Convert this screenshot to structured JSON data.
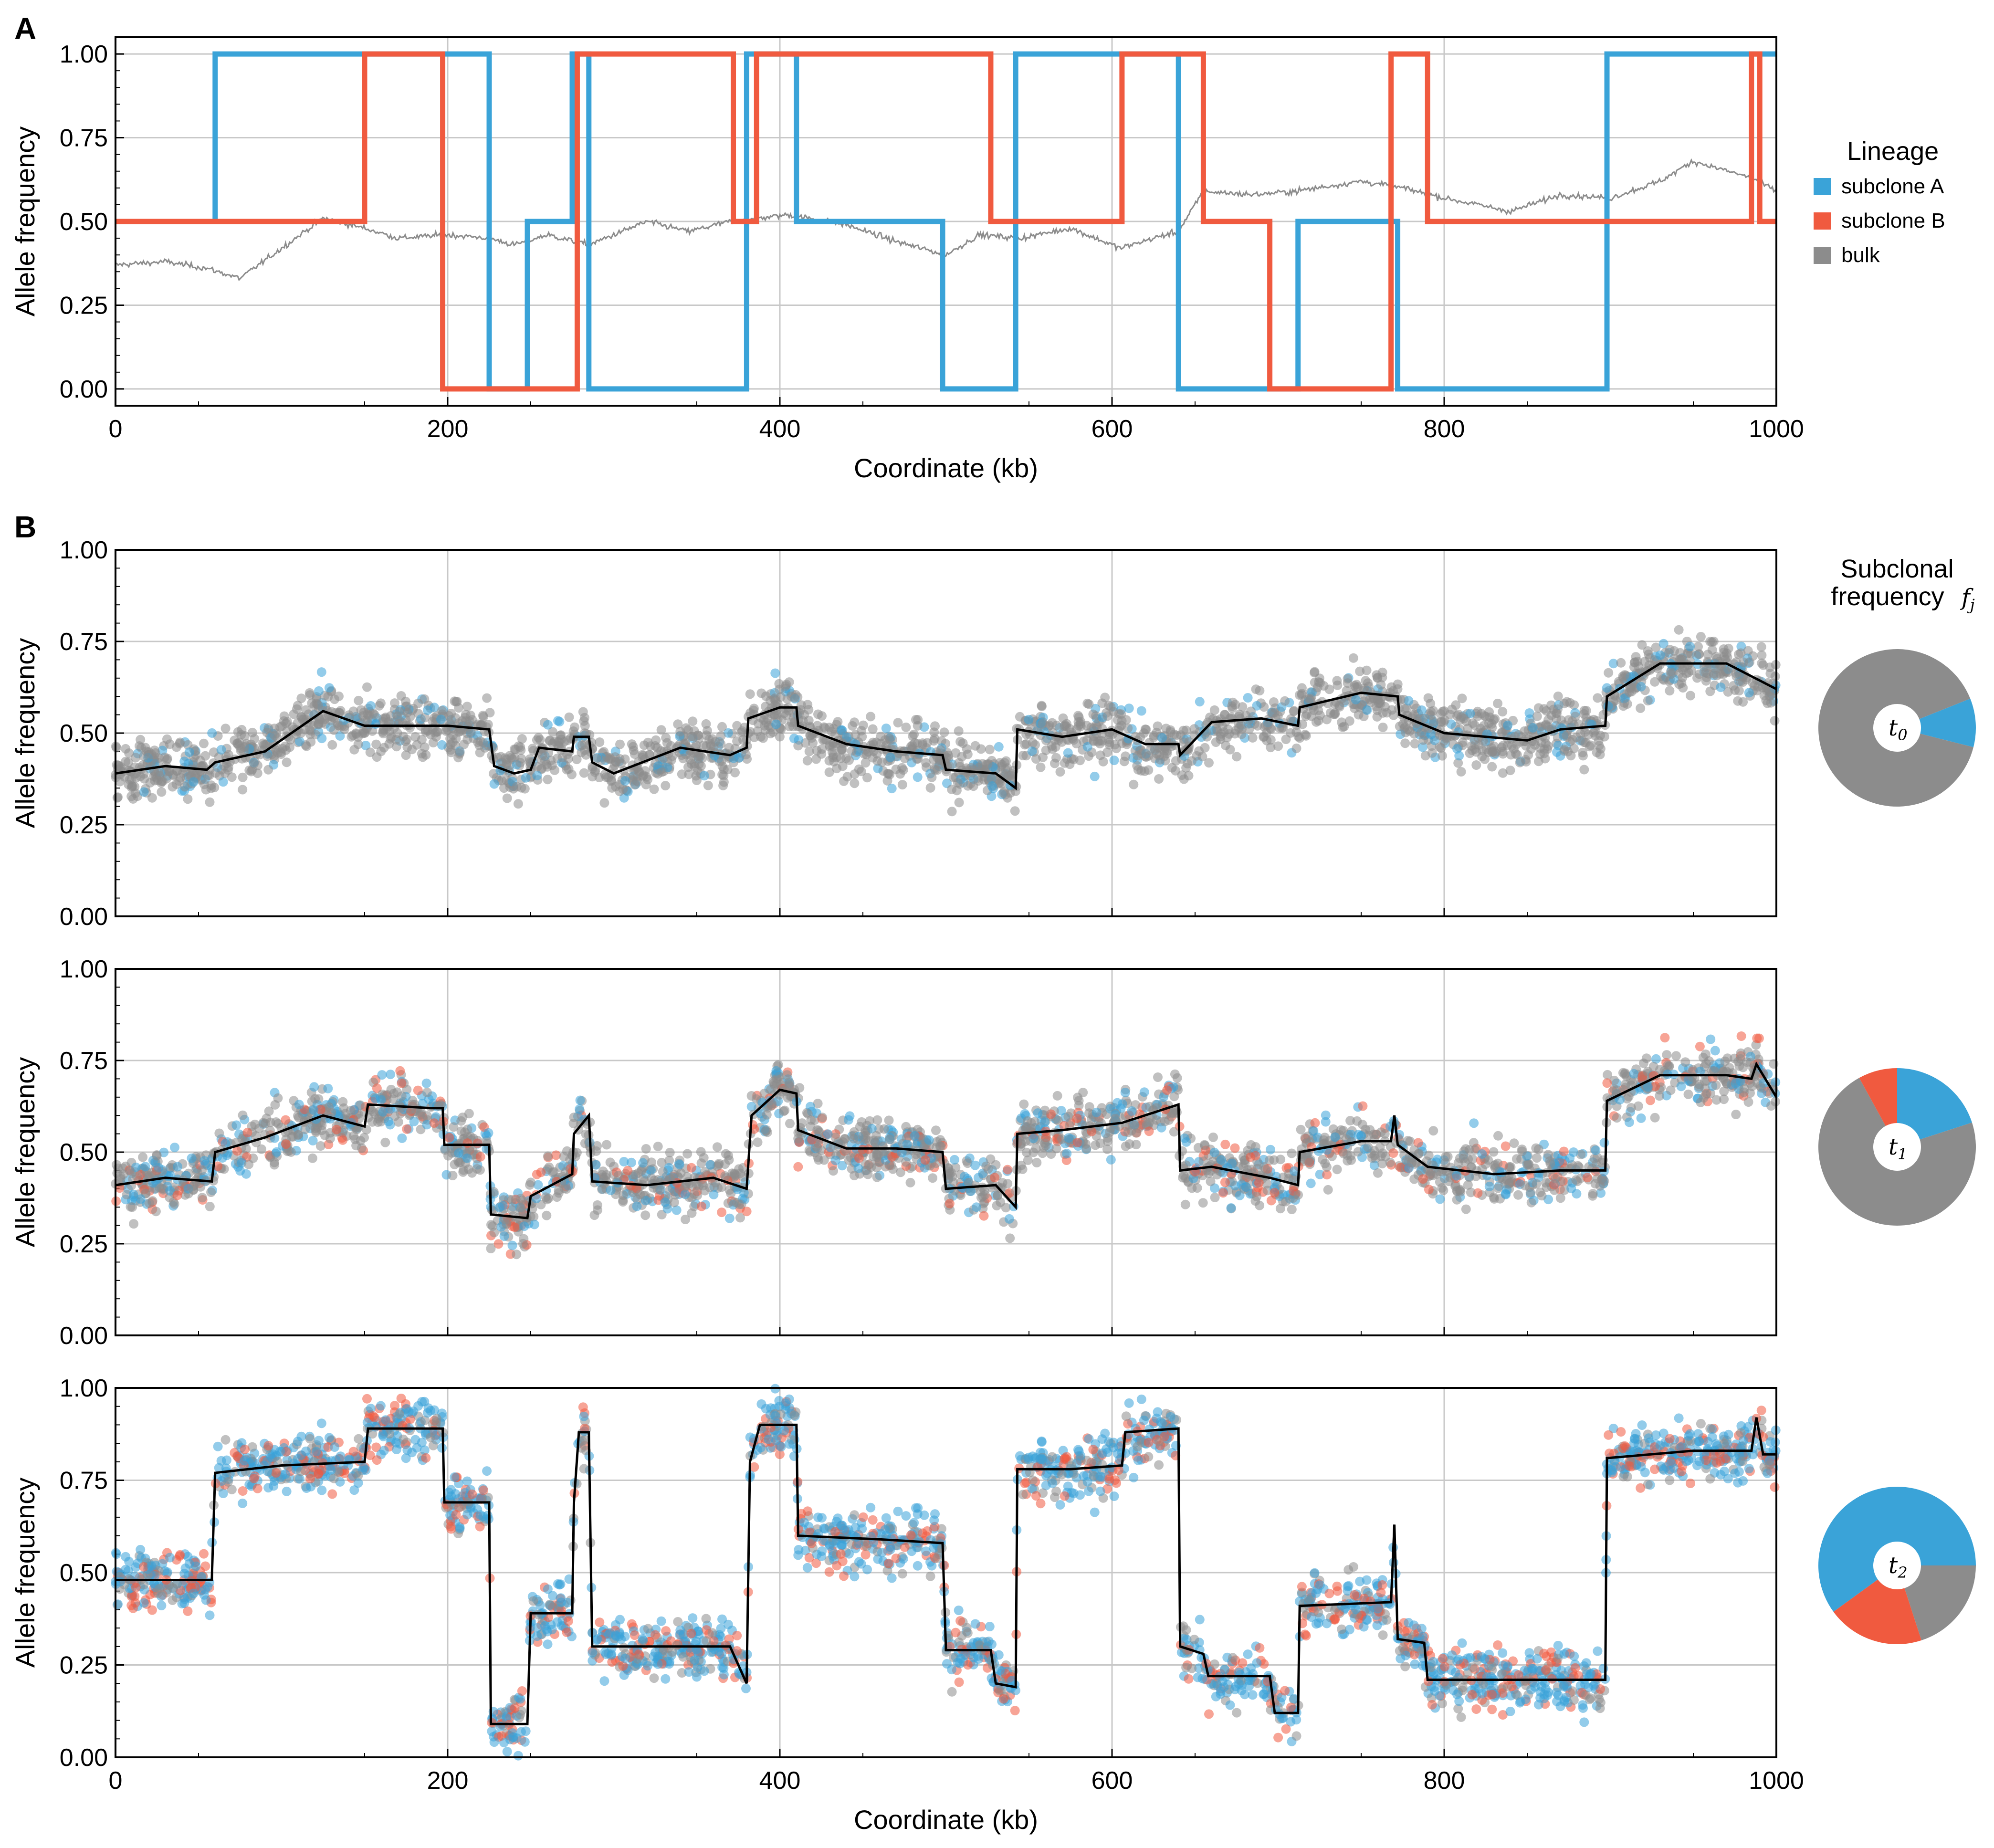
{
  "panels": {
    "a_letter": "A",
    "b_letter": "B"
  },
  "legend": {
    "title": "Lineage",
    "items": [
      {
        "label": "subclone A",
        "color": "#3aa3d8"
      },
      {
        "label": "subclone B",
        "color": "#f05a3f"
      },
      {
        "label": "bulk",
        "color": "#8c8c8c"
      }
    ]
  },
  "pie_title": [
    "Subclonal",
    "frequency"
  ],
  "pie_title_symbol": "f",
  "pie_title_sub": "j",
  "chart_data": [
    {
      "type": "line",
      "panel": "A",
      "xlabel": "Coordinate (kb)",
      "ylabel": "Allele frequency",
      "xlim": [
        0,
        1000
      ],
      "ylim": [
        -0.05,
        1.05
      ],
      "xticks": [
        0,
        200,
        400,
        600,
        800,
        1000
      ],
      "yticks": [
        0.0,
        0.25,
        0.5,
        0.75,
        1.0
      ],
      "ytick_labels": [
        "0.00",
        "0.25",
        "0.50",
        "0.75",
        "1.00"
      ],
      "grid": true,
      "series": [
        {
          "name": "subclone A",
          "color": "#3aa3d8",
          "segments": [
            [
              0,
              60,
              0.5
            ],
            [
              60,
              225,
              1.0
            ],
            [
              225,
              248,
              0.0
            ],
            [
              248,
              275,
              0.5
            ],
            [
              275,
              285,
              1.0
            ],
            [
              285,
              380,
              0.0
            ],
            [
              380,
              410,
              1.0
            ],
            [
              410,
              498,
              0.5
            ],
            [
              498,
              542,
              0.0
            ],
            [
              542,
              640,
              1.0
            ],
            [
              640,
              712,
              0.0
            ],
            [
              712,
              772,
              0.5
            ],
            [
              772,
              898,
              0.0
            ],
            [
              898,
              1000,
              1.0
            ]
          ]
        },
        {
          "name": "subclone B",
          "color": "#f05a3f",
          "segments": [
            [
              0,
              150,
              0.5
            ],
            [
              150,
              197,
              1.0
            ],
            [
              197,
              278,
              0.0
            ],
            [
              278,
              372,
              1.0
            ],
            [
              372,
              386,
              0.5
            ],
            [
              386,
              527,
              1.0
            ],
            [
              527,
              606,
              0.5
            ],
            [
              606,
              655,
              1.0
            ],
            [
              655,
              695,
              0.5
            ],
            [
              695,
              768,
              0.0
            ],
            [
              768,
              790,
              1.0
            ],
            [
              790,
              985,
              0.5
            ],
            [
              985,
              990,
              1.0
            ],
            [
              990,
              1000,
              0.5
            ]
          ]
        },
        {
          "name": "bulk",
          "color": "#8c8c8c",
          "points": [
            [
              0,
              0.37
            ],
            [
              30,
              0.38
            ],
            [
              55,
              0.36
            ],
            [
              75,
              0.33
            ],
            [
              100,
              0.42
            ],
            [
              125,
              0.51
            ],
            [
              150,
              0.48
            ],
            [
              170,
              0.45
            ],
            [
              200,
              0.46
            ],
            [
              225,
              0.45
            ],
            [
              240,
              0.43
            ],
            [
              260,
              0.46
            ],
            [
              285,
              0.43
            ],
            [
              320,
              0.5
            ],
            [
              345,
              0.47
            ],
            [
              370,
              0.5
            ],
            [
              405,
              0.52
            ],
            [
              440,
              0.49
            ],
            [
              470,
              0.44
            ],
            [
              500,
              0.4
            ],
            [
              520,
              0.46
            ],
            [
              545,
              0.45
            ],
            [
              575,
              0.48
            ],
            [
              605,
              0.42
            ],
            [
              625,
              0.45
            ],
            [
              640,
              0.47
            ],
            [
              655,
              0.59
            ],
            [
              685,
              0.58
            ],
            [
              710,
              0.59
            ],
            [
              750,
              0.62
            ],
            [
              775,
              0.6
            ],
            [
              800,
              0.57
            ],
            [
              840,
              0.53
            ],
            [
              870,
              0.58
            ],
            [
              900,
              0.57
            ],
            [
              930,
              0.62
            ],
            [
              950,
              0.68
            ],
            [
              985,
              0.63
            ],
            [
              1000,
              0.59
            ]
          ]
        }
      ]
    },
    {
      "type": "scatter",
      "panel": "B-t0",
      "pie_label": "t",
      "pie_label_sub": "0",
      "xlabel": "",
      "ylabel": "Allele frequency",
      "xlim": [
        0,
        1000
      ],
      "ylim": [
        0,
        1
      ],
      "xticks": [
        0,
        200,
        400,
        600,
        800,
        1000
      ],
      "yticks": [
        0.0,
        0.25,
        0.5,
        0.75,
        1.0
      ],
      "ytick_labels": [
        "0.00",
        "0.25",
        "0.50",
        "0.75",
        "1.00"
      ],
      "grid": true,
      "fit_line": [
        [
          0,
          0.39
        ],
        [
          30,
          0.41
        ],
        [
          55,
          0.4
        ],
        [
          60,
          0.42
        ],
        [
          90,
          0.45
        ],
        [
          125,
          0.56
        ],
        [
          150,
          0.52
        ],
        [
          200,
          0.52
        ],
        [
          225,
          0.51
        ],
        [
          228,
          0.41
        ],
        [
          240,
          0.39
        ],
        [
          250,
          0.4
        ],
        [
          255,
          0.46
        ],
        [
          275,
          0.45
        ],
        [
          276,
          0.49
        ],
        [
          285,
          0.49
        ],
        [
          287,
          0.42
        ],
        [
          300,
          0.39
        ],
        [
          340,
          0.46
        ],
        [
          370,
          0.44
        ],
        [
          380,
          0.46
        ],
        [
          381,
          0.54
        ],
        [
          400,
          0.57
        ],
        [
          410,
          0.57
        ],
        [
          411,
          0.52
        ],
        [
          440,
          0.47
        ],
        [
          470,
          0.45
        ],
        [
          498,
          0.44
        ],
        [
          500,
          0.4
        ],
        [
          530,
          0.39
        ],
        [
          542,
          0.35
        ],
        [
          543,
          0.51
        ],
        [
          570,
          0.49
        ],
        [
          600,
          0.51
        ],
        [
          620,
          0.47
        ],
        [
          640,
          0.47
        ],
        [
          641,
          0.44
        ],
        [
          660,
          0.53
        ],
        [
          690,
          0.54
        ],
        [
          712,
          0.52
        ],
        [
          713,
          0.57
        ],
        [
          750,
          0.61
        ],
        [
          772,
          0.6
        ],
        [
          773,
          0.55
        ],
        [
          800,
          0.5
        ],
        [
          850,
          0.48
        ],
        [
          870,
          0.51
        ],
        [
          897,
          0.52
        ],
        [
          898,
          0.6
        ],
        [
          930,
          0.69
        ],
        [
          970,
          0.69
        ],
        [
          1000,
          0.62
        ]
      ],
      "pie_fractions": {
        "subclone A": 0.1,
        "subclone B": 0.0,
        "bulk": 0.9
      }
    },
    {
      "type": "scatter",
      "panel": "B-t1",
      "pie_label": "t",
      "pie_label_sub": "1",
      "xlabel": "",
      "ylabel": "Allele frequency",
      "xlim": [
        0,
        1000
      ],
      "ylim": [
        0,
        1
      ],
      "xticks": [
        0,
        200,
        400,
        600,
        800,
        1000
      ],
      "yticks": [
        0.0,
        0.25,
        0.5,
        0.75,
        1.0
      ],
      "ytick_labels": [
        "0.00",
        "0.25",
        "0.50",
        "0.75",
        "1.00"
      ],
      "grid": true,
      "fit_line": [
        [
          0,
          0.41
        ],
        [
          30,
          0.43
        ],
        [
          58,
          0.42
        ],
        [
          60,
          0.5
        ],
        [
          90,
          0.54
        ],
        [
          125,
          0.6
        ],
        [
          150,
          0.57
        ],
        [
          152,
          0.63
        ],
        [
          190,
          0.62
        ],
        [
          197,
          0.62
        ],
        [
          198,
          0.52
        ],
        [
          225,
          0.52
        ],
        [
          226,
          0.33
        ],
        [
          248,
          0.32
        ],
        [
          250,
          0.38
        ],
        [
          275,
          0.44
        ],
        [
          276,
          0.55
        ],
        [
          285,
          0.6
        ],
        [
          287,
          0.42
        ],
        [
          320,
          0.41
        ],
        [
          360,
          0.43
        ],
        [
          380,
          0.4
        ],
        [
          383,
          0.6
        ],
        [
          400,
          0.67
        ],
        [
          410,
          0.66
        ],
        [
          411,
          0.56
        ],
        [
          440,
          0.51
        ],
        [
          470,
          0.51
        ],
        [
          498,
          0.5
        ],
        [
          500,
          0.4
        ],
        [
          530,
          0.41
        ],
        [
          542,
          0.35
        ],
        [
          543,
          0.55
        ],
        [
          570,
          0.56
        ],
        [
          606,
          0.58
        ],
        [
          640,
          0.63
        ],
        [
          641,
          0.45
        ],
        [
          660,
          0.46
        ],
        [
          695,
          0.43
        ],
        [
          712,
          0.41
        ],
        [
          713,
          0.5
        ],
        [
          750,
          0.53
        ],
        [
          768,
          0.53
        ],
        [
          770,
          0.6
        ],
        [
          772,
          0.52
        ],
        [
          790,
          0.46
        ],
        [
          830,
          0.44
        ],
        [
          870,
          0.45
        ],
        [
          897,
          0.45
        ],
        [
          898,
          0.64
        ],
        [
          930,
          0.71
        ],
        [
          970,
          0.71
        ],
        [
          985,
          0.7
        ],
        [
          988,
          0.74
        ],
        [
          1000,
          0.65
        ]
      ],
      "pie_fractions": {
        "subclone A": 0.2,
        "subclone B": 0.08,
        "bulk": 0.72
      }
    },
    {
      "type": "scatter",
      "panel": "B-t2",
      "pie_label": "t",
      "pie_label_sub": "2",
      "xlabel": "Coordinate (kb)",
      "ylabel": "Allele frequency",
      "xlim": [
        0,
        1000
      ],
      "ylim": [
        0,
        1
      ],
      "xticks": [
        0,
        200,
        400,
        600,
        800,
        1000
      ],
      "yticks": [
        0.0,
        0.25,
        0.5,
        0.75,
        1.0
      ],
      "ytick_labels": [
        "0.00",
        "0.25",
        "0.50",
        "0.75",
        "1.00"
      ],
      "grid": true,
      "fit_line": [
        [
          0,
          0.48
        ],
        [
          58,
          0.48
        ],
        [
          60,
          0.77
        ],
        [
          100,
          0.79
        ],
        [
          150,
          0.8
        ],
        [
          152,
          0.89
        ],
        [
          197,
          0.89
        ],
        [
          198,
          0.69
        ],
        [
          225,
          0.69
        ],
        [
          226,
          0.09
        ],
        [
          248,
          0.09
        ],
        [
          250,
          0.39
        ],
        [
          275,
          0.39
        ],
        [
          276,
          0.69
        ],
        [
          279,
          0.88
        ],
        [
          285,
          0.88
        ],
        [
          287,
          0.3
        ],
        [
          340,
          0.3
        ],
        [
          370,
          0.3
        ],
        [
          380,
          0.2
        ],
        [
          382,
          0.8
        ],
        [
          388,
          0.9
        ],
        [
          410,
          0.9
        ],
        [
          411,
          0.6
        ],
        [
          460,
          0.59
        ],
        [
          498,
          0.58
        ],
        [
          500,
          0.29
        ],
        [
          527,
          0.29
        ],
        [
          530,
          0.2
        ],
        [
          542,
          0.19
        ],
        [
          543,
          0.78
        ],
        [
          575,
          0.78
        ],
        [
          606,
          0.79
        ],
        [
          608,
          0.88
        ],
        [
          640,
          0.89
        ],
        [
          641,
          0.3
        ],
        [
          655,
          0.28
        ],
        [
          658,
          0.22
        ],
        [
          695,
          0.22
        ],
        [
          698,
          0.12
        ],
        [
          712,
          0.12
        ],
        [
          713,
          0.41
        ],
        [
          768,
          0.42
        ],
        [
          770,
          0.63
        ],
        [
          772,
          0.32
        ],
        [
          788,
          0.31
        ],
        [
          790,
          0.21
        ],
        [
          850,
          0.21
        ],
        [
          897,
          0.21
        ],
        [
          898,
          0.81
        ],
        [
          950,
          0.83
        ],
        [
          985,
          0.83
        ],
        [
          988,
          0.92
        ],
        [
          992,
          0.82
        ],
        [
          1000,
          0.82
        ]
      ],
      "pie_fractions": {
        "subclone A": 0.6,
        "subclone B": 0.2,
        "bulk": 0.2
      }
    }
  ]
}
